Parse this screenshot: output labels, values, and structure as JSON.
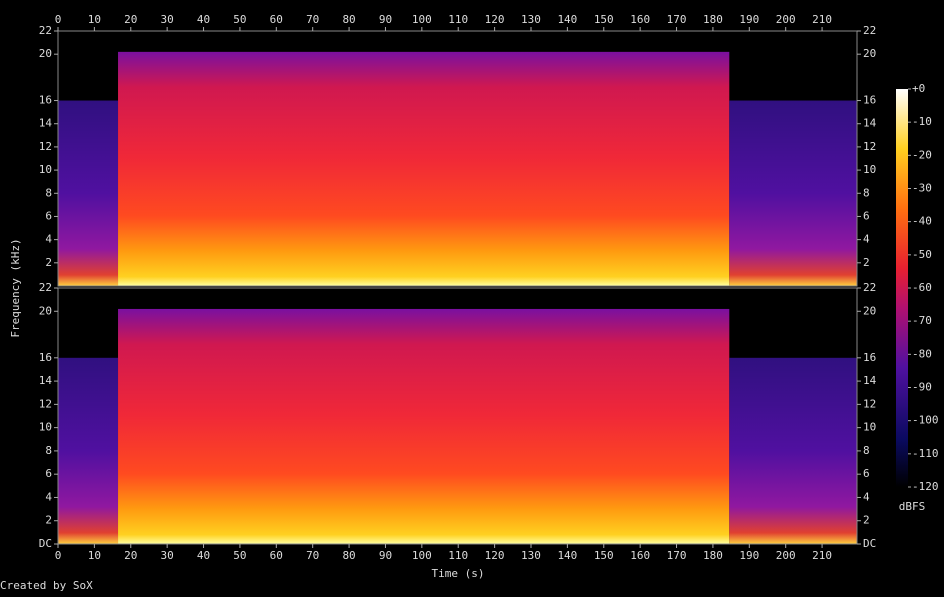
{
  "chart_data": {
    "type": "spectrogram",
    "xlabel": "Time (s)",
    "ylabel": "Frequency (kHz)",
    "footer": "Created by SoX",
    "xlim": [
      0,
      219.6
    ],
    "xticks": [
      0,
      10,
      20,
      30,
      40,
      50,
      60,
      70,
      80,
      90,
      100,
      110,
      120,
      130,
      140,
      150,
      160,
      170,
      180,
      190,
      200,
      210
    ],
    "panels": [
      {
        "ylim": [
          0,
          22
        ],
        "yticks": [
          2,
          4,
          6,
          8,
          10,
          12,
          14,
          16,
          20,
          22
        ]
      },
      {
        "ylim": [
          0,
          22
        ],
        "yticks": [
          {
            "value": 0,
            "label": "DC"
          },
          2,
          4,
          6,
          8,
          10,
          12,
          14,
          16,
          20,
          22
        ]
      }
    ],
    "bandwidth": {
      "start": [
        0,
        16.5,
        184.5
      ],
      "end": [
        16.5,
        184.5,
        219.6
      ],
      "cutoff": [
        16,
        20.2,
        16
      ],
      "style": [
        "dim",
        "bright",
        "dim"
      ]
    },
    "colorbar": {
      "label": "dBFS",
      "lim": [
        -120,
        0
      ],
      "ticks": [
        {
          "value": 0,
          "label": "+0"
        },
        -10,
        -20,
        -30,
        -40,
        -50,
        -60,
        -70,
        -80,
        -90,
        -100,
        -110,
        -120
      ]
    }
  }
}
